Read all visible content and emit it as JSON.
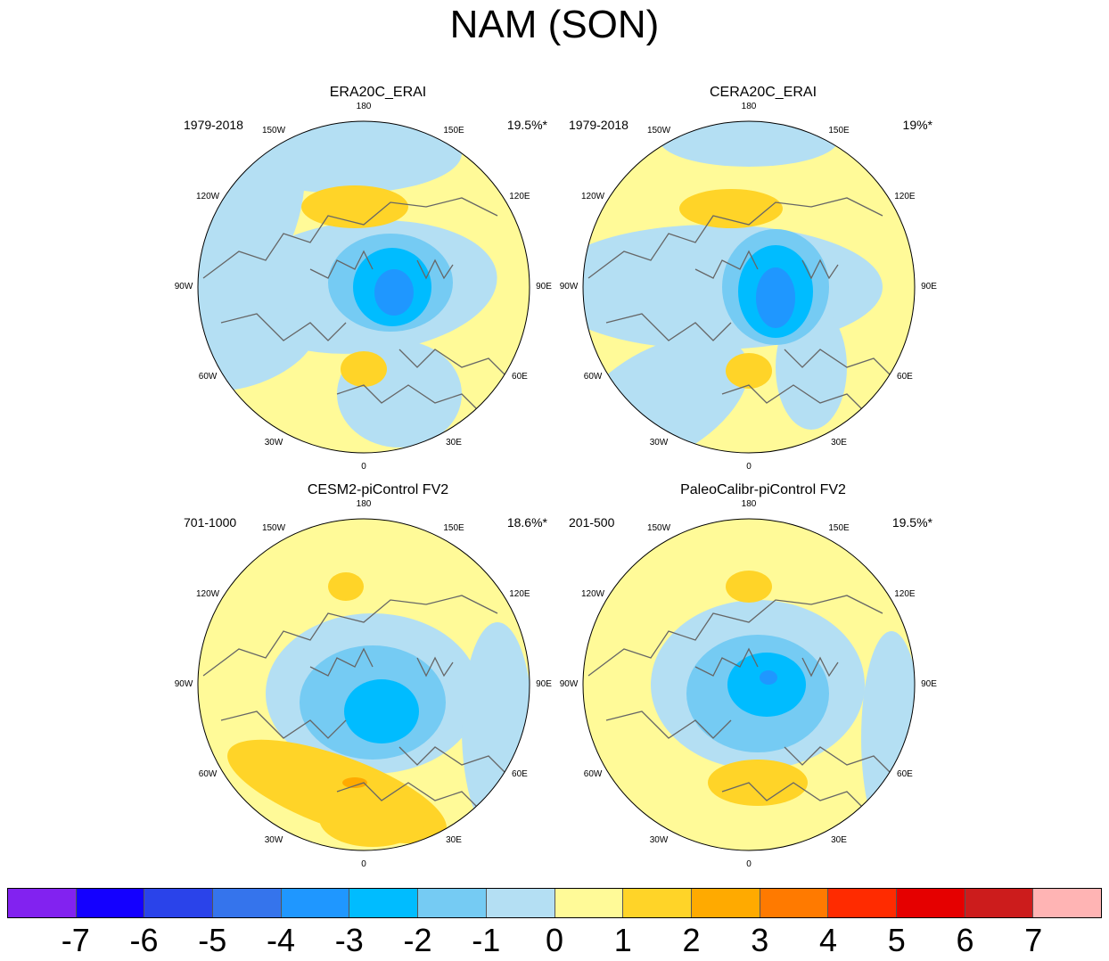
{
  "title": "NAM (SON)",
  "lon_labels": [
    "180",
    "150E",
    "120E",
    "90E",
    "60E",
    "30E",
    "0",
    "30W",
    "60W",
    "90W",
    "120W",
    "150W"
  ],
  "panels": [
    {
      "title": "ERA20C_ERAI",
      "period": "1979-2018",
      "pct": "19.5%*",
      "pattern": "era20c"
    },
    {
      "title": "CERA20C_ERAI",
      "period": "1979-2018",
      "pct": "19%*",
      "pattern": "cera20c"
    },
    {
      "title": "CESM2-piControl FV2",
      "period": "701-1000",
      "pct": "18.6%*",
      "pattern": "cesm2"
    },
    {
      "title": "PaleoCalibr-piControl FV2",
      "period": "201-500",
      "pct": "19.5%*",
      "pattern": "paleo"
    }
  ],
  "colorbar": {
    "labels": [
      "-7",
      "-6",
      "-5",
      "-4",
      "-3",
      "-2",
      "-1",
      "0",
      "1",
      "2",
      "3",
      "4",
      "5",
      "6",
      "7"
    ],
    "colors": [
      "#8222f0",
      "#1400ff",
      "#2a43ea",
      "#3574ec",
      "#1f97ff",
      "#00bcff",
      "#75cbf3",
      "#b4dff3",
      "#fffa98",
      "#ffd428",
      "#ffaa00",
      "#ff7a00",
      "#ff2b00",
      "#e50000",
      "#cc1c1c",
      "#ffb4b4"
    ]
  },
  "chart_data": {
    "type": "heatmap",
    "title": "NAM (SON)",
    "projection": "north-polar-stereographic",
    "colorbar_levels": [
      -7,
      -6,
      -5,
      -4,
      -3,
      -2,
      -1,
      0,
      1,
      2,
      3,
      4,
      5,
      6,
      7
    ],
    "panels": [
      {
        "title": "ERA20C_ERAI",
        "period": "1979-2018",
        "explained_variance": "19.5%*"
      },
      {
        "title": "CERA20C_ERAI",
        "period": "1979-2018",
        "explained_variance": "19%*"
      },
      {
        "title": "CESM2-piControl FV2",
        "period": "701-1000",
        "explained_variance": "18.6%*"
      },
      {
        "title": "PaleoCalibr-piControl FV2",
        "period": "201-500",
        "explained_variance": "19.5%*"
      }
    ]
  }
}
